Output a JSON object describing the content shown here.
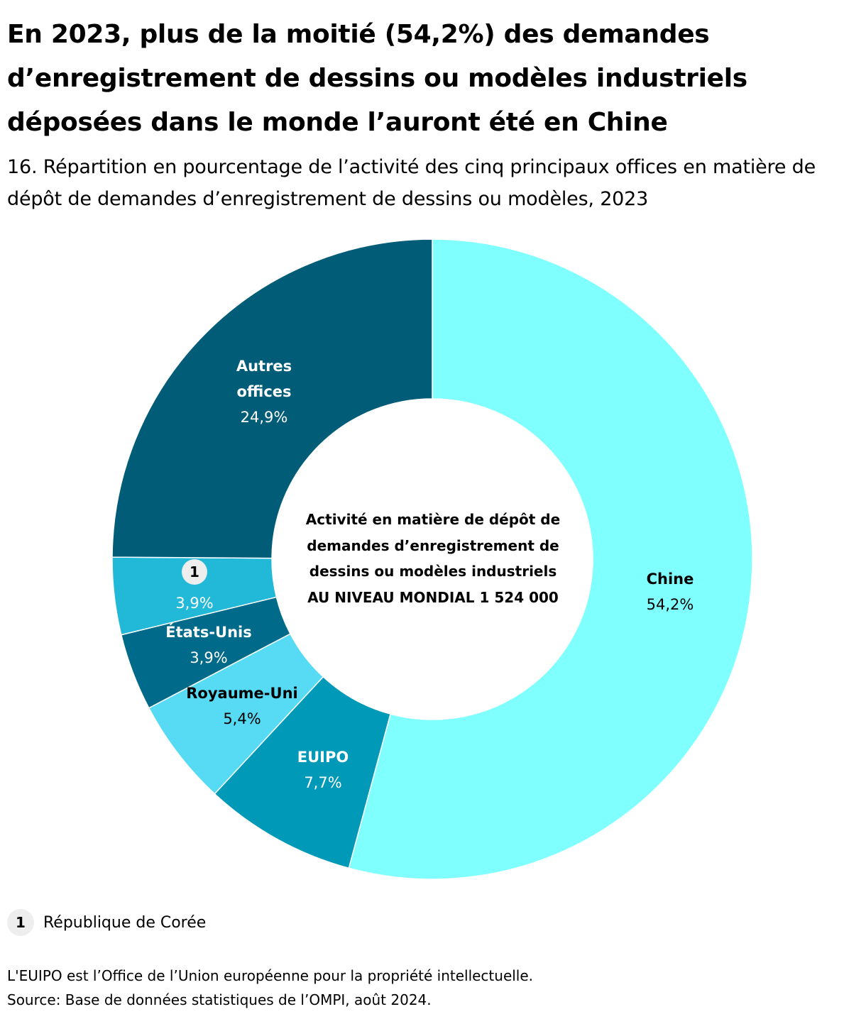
{
  "title": "En 2023, plus de la moitié (54,2%) des demandes d’enregistrement de dessins ou modèles industriels déposées dans le monde l’auront été en Chine",
  "subtitle": "16. Répartition en pourcentage de l’activité des cinq principaux offices en matière de dépôt de demandes d’enregistrement de dessins ou modèles, 2023",
  "center_text": {
    "line1": "Activité en matière de dépôt de",
    "line2": "demandes d’enregistrement de",
    "line3": "dessins ou modèles industriels",
    "line4": "AU NIVEAU MONDIAL 1 524 000"
  },
  "legend": {
    "marker": "1",
    "label": "République de Corée"
  },
  "footnote": {
    "line1": "L'EUIPO est l’Office de l’Union européenne pour la propriété intellectuelle.",
    "line2": "Source: Base de données statistiques de l’OMPI, août 2024."
  },
  "chart_data": {
    "type": "pie",
    "variant": "donut",
    "start_angle_deg": 0,
    "direction": "clockwise",
    "total_label": "AU NIVEAU MONDIAL 1 524 000",
    "slices": [
      {
        "label": "Chine",
        "value": 54.2,
        "value_label": "54,2%",
        "color": "#80ffff",
        "label_color": "#000000",
        "value_color": "#000000"
      },
      {
        "label": "EUIPO",
        "value": 7.7,
        "value_label": "7,7%",
        "color": "#0099b8",
        "label_color": "#ffffff",
        "value_color": "#ffffff"
      },
      {
        "label": "Royaume-Uni",
        "value": 5.4,
        "value_label": "5,4%",
        "color": "#57daf4",
        "label_color": "#000000",
        "value_color": "#000000"
      },
      {
        "label": "États-Unis",
        "value": 3.9,
        "value_label": "3,9%",
        "color": "#006a8a",
        "label_color": "#ffffff",
        "value_color": "#ffffff"
      },
      {
        "label": "1",
        "value": 3.9,
        "value_label": "3,9%",
        "color": "#22b8d8",
        "label_color": "#000000",
        "value_color": "#ffffff",
        "marker": true
      },
      {
        "label": "Autres offices",
        "label_lines": [
          "Autres",
          "offices"
        ],
        "value": 24.9,
        "value_label": "24,9%",
        "color": "#005c77",
        "label_color": "#ffffff",
        "value_color": "#ffffff"
      }
    ]
  }
}
